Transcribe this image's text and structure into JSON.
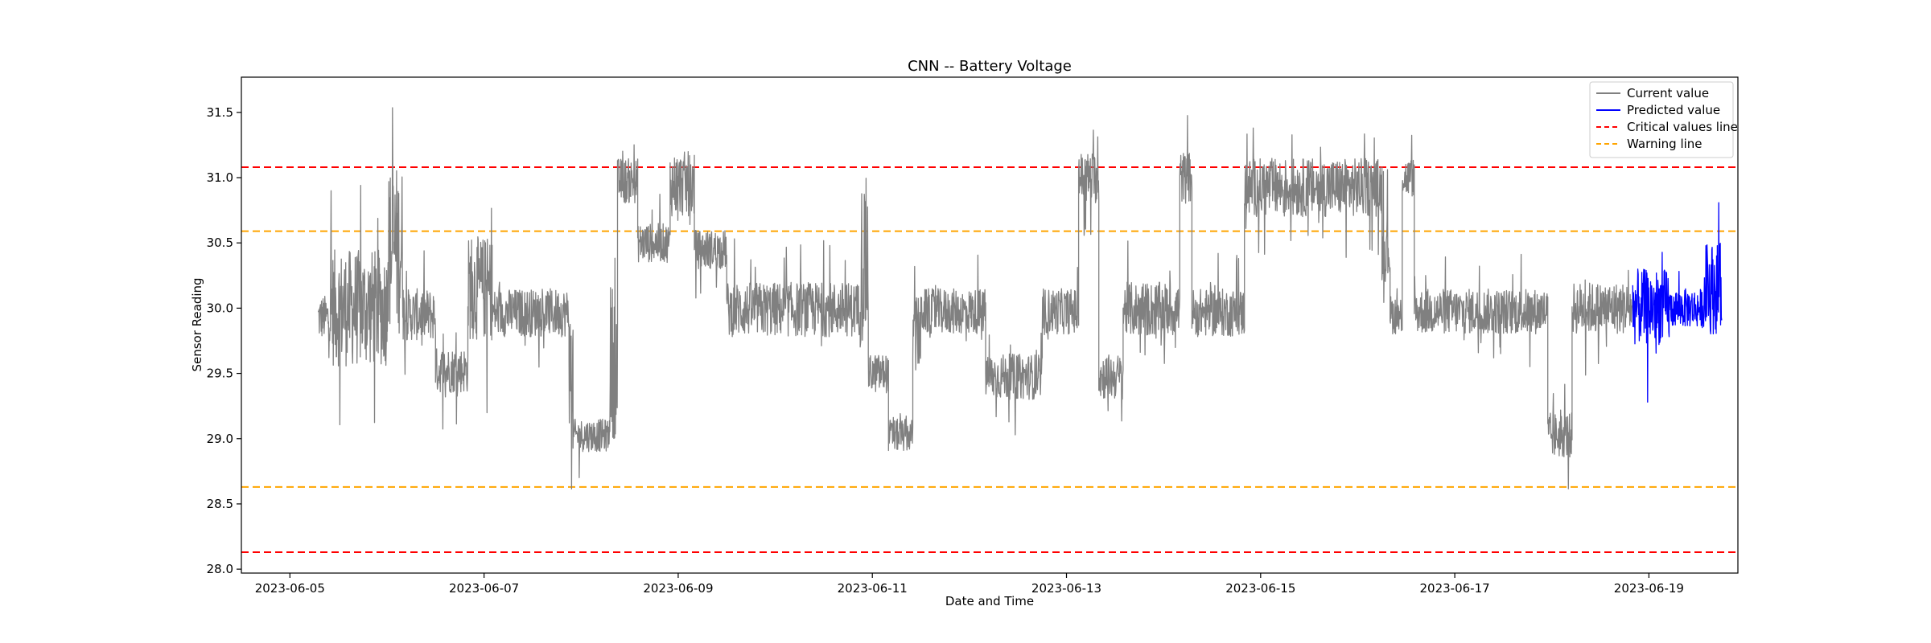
{
  "chart_data": {
    "type": "line",
    "title": "CNN -- Battery Voltage",
    "xlabel": "Date and Time",
    "ylabel": "Sensor Reading",
    "xlim": [
      "2023-06-04T12:00",
      "2023-06-19T22:00"
    ],
    "ylim": [
      27.97,
      31.77
    ],
    "x_ticks": [
      "2023-06-05",
      "2023-06-07",
      "2023-06-09",
      "2023-06-11",
      "2023-06-13",
      "2023-06-15",
      "2023-06-17",
      "2023-06-19"
    ],
    "y_ticks": [
      "28.0",
      "28.5",
      "29.0",
      "29.5",
      "30.0",
      "30.5",
      "31.0",
      "31.5"
    ],
    "grid": false,
    "legend": {
      "placement": "top-right",
      "entries": [
        {
          "label": "Current value",
          "color": "#808080",
          "style": "solid"
        },
        {
          "label": "Predicted value",
          "color": "#0000ff",
          "style": "solid"
        },
        {
          "label": "Critical values line",
          "color": "#ff0000",
          "style": "dashed"
        },
        {
          "label": "Warning line",
          "color": "#ffa500",
          "style": "dashed"
        }
      ]
    },
    "reference_lines": [
      {
        "name": "Critical values line",
        "y": 31.08,
        "color": "#ff0000"
      },
      {
        "name": "Critical values line",
        "y": 28.13,
        "color": "#ff0000"
      },
      {
        "name": "Warning line",
        "y": 30.59,
        "color": "#ffa500"
      },
      {
        "name": "Warning line",
        "y": 28.63,
        "color": "#ffa500"
      }
    ],
    "series": [
      {
        "name": "Current value",
        "color": "#808080",
        "segments": [
          {
            "start": "2023-06-05T07:00",
            "end": "2023-06-05T10:00",
            "low": 29.75,
            "high": 30.1
          },
          {
            "start": "2023-06-05T10:00",
            "end": "2023-06-06T00:00",
            "low": 29.55,
            "high": 30.45
          },
          {
            "start": "2023-06-06T00:00",
            "end": "2023-06-06T04:00",
            "low": 29.8,
            "high": 31.1
          },
          {
            "start": "2023-06-06T04:00",
            "end": "2023-06-06T12:00",
            "low": 29.75,
            "high": 30.15
          },
          {
            "start": "2023-06-06T12:00",
            "end": "2023-06-06T20:00",
            "low": 29.35,
            "high": 29.7
          },
          {
            "start": "2023-06-06T20:00",
            "end": "2023-06-07T02:00",
            "low": 29.75,
            "high": 30.55
          },
          {
            "start": "2023-06-07T02:00",
            "end": "2023-06-07T21:00",
            "low": 29.78,
            "high": 30.15
          },
          {
            "start": "2023-06-07T21:00",
            "end": "2023-06-07T22:00",
            "low": 29.1,
            "high": 30.0
          },
          {
            "start": "2023-06-07T22:00",
            "end": "2023-06-08T07:00",
            "low": 28.9,
            "high": 29.15
          },
          {
            "start": "2023-06-08T07:00",
            "end": "2023-06-08T09:00",
            "low": 29.0,
            "high": 30.2
          },
          {
            "start": "2023-06-08T09:00",
            "end": "2023-06-08T14:00",
            "low": 30.8,
            "high": 31.15
          },
          {
            "start": "2023-06-08T14:00",
            "end": "2023-06-08T22:00",
            "low": 30.35,
            "high": 30.65
          },
          {
            "start": "2023-06-08T22:00",
            "end": "2023-06-09T04:00",
            "low": 30.7,
            "high": 31.2
          },
          {
            "start": "2023-06-09T04:00",
            "end": "2023-06-09T12:00",
            "low": 30.3,
            "high": 30.6
          },
          {
            "start": "2023-06-09T12:00",
            "end": "2023-06-10T21:00",
            "low": 29.78,
            "high": 30.2
          },
          {
            "start": "2023-06-10T21:00",
            "end": "2023-06-10T23:00",
            "low": 29.7,
            "high": 31.0
          },
          {
            "start": "2023-06-10T23:00",
            "end": "2023-06-11T04:00",
            "low": 29.35,
            "high": 29.65
          },
          {
            "start": "2023-06-11T04:00",
            "end": "2023-06-11T10:00",
            "low": 28.9,
            "high": 29.15
          },
          {
            "start": "2023-06-11T10:00",
            "end": "2023-06-11T12:00",
            "low": 29.5,
            "high": 30.1
          },
          {
            "start": "2023-06-11T12:00",
            "end": "2023-06-12T04:00",
            "low": 29.8,
            "high": 30.15
          },
          {
            "start": "2023-06-12T04:00",
            "end": "2023-06-12T18:00",
            "low": 29.3,
            "high": 29.65
          },
          {
            "start": "2023-06-12T18:00",
            "end": "2023-06-13T03:00",
            "low": 29.8,
            "high": 30.15
          },
          {
            "start": "2023-06-13T03:00",
            "end": "2023-06-13T08:00",
            "low": 30.8,
            "high": 31.2
          },
          {
            "start": "2023-06-13T08:00",
            "end": "2023-06-13T14:00",
            "low": 29.3,
            "high": 29.65
          },
          {
            "start": "2023-06-13T14:00",
            "end": "2023-06-14T04:00",
            "low": 29.78,
            "high": 30.2
          },
          {
            "start": "2023-06-14T04:00",
            "end": "2023-06-14T07:00",
            "low": 30.8,
            "high": 31.2
          },
          {
            "start": "2023-06-14T07:00",
            "end": "2023-06-14T20:00",
            "low": 29.78,
            "high": 30.15
          },
          {
            "start": "2023-06-14T20:00",
            "end": "2023-06-16T06:00",
            "low": 30.7,
            "high": 31.15
          },
          {
            "start": "2023-06-16T06:00",
            "end": "2023-06-16T08:00",
            "low": 30.2,
            "high": 30.7
          },
          {
            "start": "2023-06-16T08:00",
            "end": "2023-06-16T11:00",
            "low": 29.8,
            "high": 30.1
          },
          {
            "start": "2023-06-16T11:00",
            "end": "2023-06-16T14:00",
            "low": 30.85,
            "high": 31.15
          },
          {
            "start": "2023-06-16T14:00",
            "end": "2023-06-17T23:00",
            "low": 29.8,
            "high": 30.15
          },
          {
            "start": "2023-06-17T23:00",
            "end": "2023-06-18T05:00",
            "low": 28.85,
            "high": 29.2
          },
          {
            "start": "2023-06-18T05:00",
            "end": "2023-06-18T20:00",
            "low": 29.8,
            "high": 30.2
          }
        ]
      },
      {
        "name": "Predicted value",
        "color": "#0000ff",
        "segments": [
          {
            "start": "2023-06-18T20:00",
            "end": "2023-06-19T05:00",
            "low": 29.72,
            "high": 30.3
          },
          {
            "start": "2023-06-19T05:00",
            "end": "2023-06-19T14:00",
            "low": 29.85,
            "high": 30.15
          },
          {
            "start": "2023-06-19T14:00",
            "end": "2023-06-19T18:00",
            "low": 29.8,
            "high": 30.5
          }
        ]
      }
    ]
  }
}
